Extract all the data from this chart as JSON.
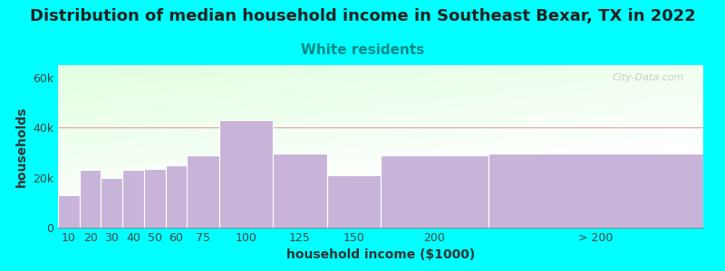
{
  "title": "Distribution of median household income in Southeast Bexar, TX in 2022",
  "subtitle": "White residents",
  "xlabel": "household income ($1000)",
  "ylabel": "households",
  "background_color": "#00FFFF",
  "bar_color": "#c8b4d8",
  "subtitle_color": "#008888",
  "title_color": "#222222",
  "yticks": [
    0,
    20000,
    40000,
    60000
  ],
  "ytick_labels": [
    "0",
    "20k",
    "40k",
    "60k"
  ],
  "ylim": [
    0,
    65000
  ],
  "bar_labels": [
    "10",
    "20",
    "30",
    "40",
    "50",
    "60",
    "75",
    "100",
    "125",
    "150",
    "200",
    "> 200"
  ],
  "bar_values": [
    13000,
    23000,
    20000,
    23000,
    23500,
    25000,
    29000,
    43000,
    29500,
    21000,
    29000,
    29500
  ],
  "bar_lefts": [
    0,
    10,
    20,
    30,
    40,
    50,
    60,
    75,
    100,
    125,
    150,
    200
  ],
  "bar_rights": [
    10,
    20,
    30,
    40,
    50,
    60,
    75,
    100,
    125,
    150,
    200,
    300
  ],
  "watermark": "City-Data.com",
  "title_fontsize": 13,
  "subtitle_fontsize": 11,
  "axis_label_fontsize": 10,
  "tick_fontsize": 9,
  "xlim": [
    0,
    300
  ]
}
